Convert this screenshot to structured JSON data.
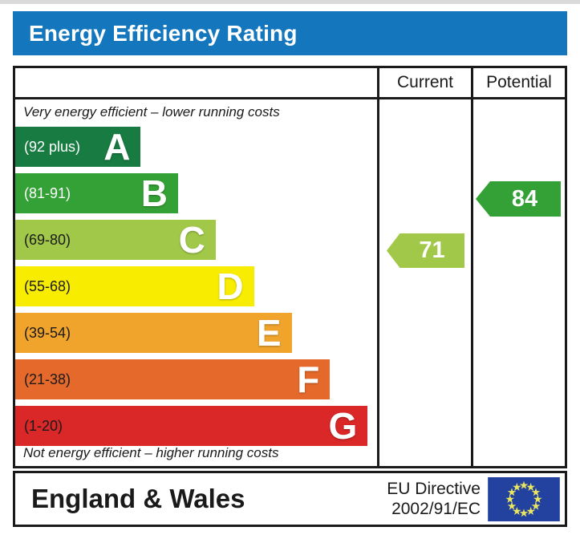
{
  "title": "Energy Efficiency Rating",
  "colors": {
    "title_bar": "#1477bd",
    "border": "#1a1a1a",
    "flag_blue": "#23419f",
    "flag_star": "#e9e65f"
  },
  "table": {
    "columns": {
      "current": "Current",
      "potential": "Potential"
    },
    "top_caption": "Very energy efficient – lower running costs",
    "bottom_caption": "Not energy efficient – higher running costs",
    "bands": [
      {
        "letter": "A",
        "range": "(92 plus)",
        "color": "#187b41",
        "width_pct": 34.7,
        "label_color": "#ffffff"
      },
      {
        "letter": "B",
        "range": "(81-91)",
        "color": "#33a135",
        "width_pct": 45.0,
        "label_color": "#ffffff"
      },
      {
        "letter": "C",
        "range": "(69-80)",
        "color": "#a1c848",
        "width_pct": 55.4,
        "label_color": "#1a1a1a"
      },
      {
        "letter": "D",
        "range": "(55-68)",
        "color": "#f8ed00",
        "width_pct": 66.0,
        "label_color": "#1a1a1a"
      },
      {
        "letter": "E",
        "range": "(39-54)",
        "color": "#f0a42c",
        "width_pct": 76.4,
        "label_color": "#1a1a1a"
      },
      {
        "letter": "F",
        "range": "(21-38)",
        "color": "#e5692b",
        "width_pct": 87.0,
        "label_color": "#1a1a1a"
      },
      {
        "letter": "G",
        "range": "(1-20)",
        "color": "#da2727",
        "width_pct": 97.4,
        "label_color": "#1a1a1a"
      }
    ],
    "current": {
      "value": "71",
      "band": "C",
      "color": "#a1c848"
    },
    "potential": {
      "value": "84",
      "band": "B",
      "color": "#33a135"
    }
  },
  "footer": {
    "region": "England & Wales",
    "directive_line1": "EU Directive",
    "directive_line2": "2002/91/EC",
    "flag_icon": "eu-flag"
  },
  "chart_data": {
    "type": "bar",
    "title": "Energy Efficiency Rating",
    "categories": [
      "A",
      "B",
      "C",
      "D",
      "E",
      "F",
      "G"
    ],
    "band_ranges": [
      "92 plus",
      "81-91",
      "69-80",
      "55-68",
      "39-54",
      "21-38",
      "1-20"
    ],
    "band_colors": [
      "#187b41",
      "#33a135",
      "#a1c848",
      "#f8ed00",
      "#f0a42c",
      "#e5692b",
      "#da2727"
    ],
    "values": [
      34.7,
      45.0,
      55.4,
      66.0,
      76.4,
      87.0,
      97.4
    ],
    "value_units": "relative bar length (percent of scale column width)",
    "series": [
      {
        "name": "Current",
        "value": 71,
        "band": "C"
      },
      {
        "name": "Potential",
        "value": 84,
        "band": "B"
      }
    ],
    "xlabel": "",
    "ylabel": "",
    "legend_position": "column headers (Current / Potential)",
    "grid": false,
    "annotations": [
      "Very energy efficient – lower running costs",
      "Not energy efficient – higher running costs",
      "England & Wales",
      "EU Directive 2002/91/EC"
    ]
  }
}
